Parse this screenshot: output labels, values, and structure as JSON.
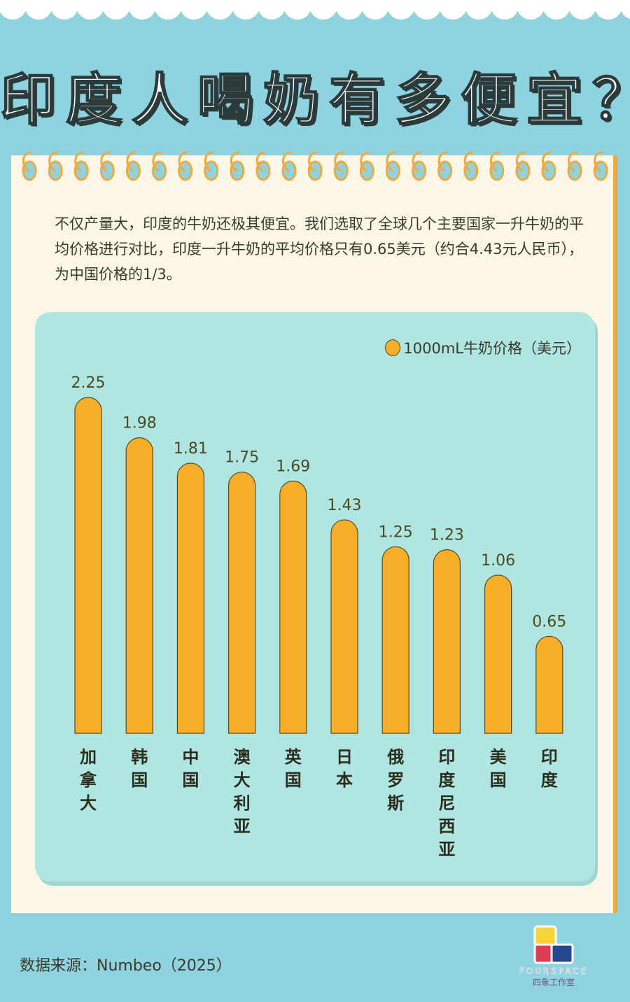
{
  "title": "印度人喝奶有多便宜？",
  "intro": "不仅产量大，印度的牛奶还极其便宜。我们选取了全球几个主要国家一升牛奶的平均价格进行对比，印度一升牛奶的平均价格只有0.65美元（约合4.43元人民币），为中国价格的1/3。",
  "source": "数据来源：Numbeo（2025）",
  "logo": {
    "en": "FOURSPACE",
    "cn": "四象工作室"
  },
  "colors": {
    "background": "#8fd3e0",
    "panel": "#b0e6e2",
    "bar": "#f9ae2a",
    "paper": "#fbf6e6"
  },
  "chart_data": {
    "type": "bar",
    "categories": [
      "加拿大",
      "韩国",
      "中国",
      "澳大利亚",
      "英国",
      "日本",
      "俄罗斯",
      "印度尼西亚",
      "美国",
      "印度"
    ],
    "series": [
      {
        "name": "1000mL牛奶价格（美元）",
        "values": [
          2.25,
          1.98,
          1.81,
          1.75,
          1.69,
          1.43,
          1.25,
          1.23,
          1.06,
          0.65
        ]
      }
    ],
    "ylim": [
      0,
      2.25
    ],
    "grid": false,
    "legend": "top-right",
    "data_labels": true
  }
}
